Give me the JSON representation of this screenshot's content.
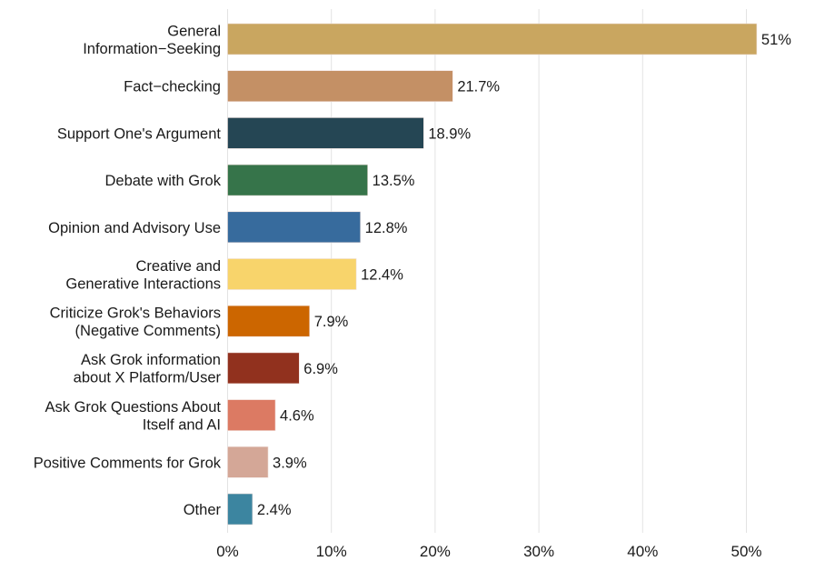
{
  "chart_data": {
    "type": "bar",
    "orientation": "horizontal",
    "categories": [
      "General\nInformation−Seeking",
      "Fact−checking",
      "Support One's Argument",
      "Debate with Grok",
      "Opinion and Advisory Use",
      "Creative and\nGenerative Interactions",
      "Criticize Grok's Behaviors\n(Negative Comments)",
      "Ask Grok information\nabout X Platform/User",
      "Ask Grok Questions About\nItself and AI",
      "Positive Comments for Grok",
      "Other"
    ],
    "values": [
      51,
      21.7,
      18.9,
      13.5,
      12.8,
      12.4,
      7.9,
      6.9,
      4.6,
      3.9,
      2.4
    ],
    "data_labels": [
      "51%",
      "21.7%",
      "18.9%",
      "13.5%",
      "12.8%",
      "12.4%",
      "7.9%",
      "6.9%",
      "4.6%",
      "3.9%",
      "2.4%"
    ],
    "colors": [
      "#C9A660",
      "#C49065",
      "#254654",
      "#36744A",
      "#376B9D",
      "#F8D46B",
      "#CC6600",
      "#91311E",
      "#DC7A63",
      "#D4A797",
      "#3C85A0"
    ],
    "xlim": [
      0,
      50
    ],
    "x_ticks": [
      0,
      10,
      20,
      30,
      40,
      50
    ],
    "x_tick_labels": [
      "0%",
      "10%",
      "20%",
      "30%",
      "40%",
      "50%"
    ],
    "grid": "vertical",
    "title": "",
    "xlabel": "",
    "ylabel": ""
  }
}
